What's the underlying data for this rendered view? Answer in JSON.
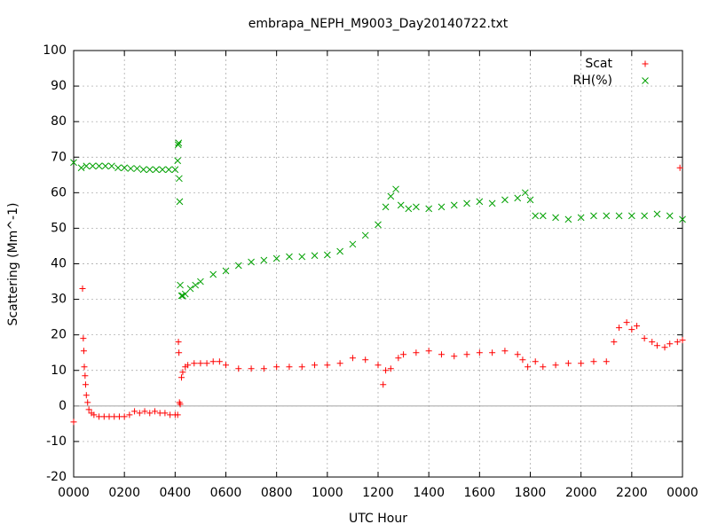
{
  "chart_data": {
    "type": "scatter",
    "title": "embrapa_NEPH_M9003_Day20140722.txt",
    "x_label": "UTC Hour",
    "y_label": "Scattering (Mm^-1)",
    "xlim": [
      0,
      24
    ],
    "ylim": [
      -20,
      100
    ],
    "xticks": [
      {
        "value": 0,
        "label": "0000"
      },
      {
        "value": 2,
        "label": "0200"
      },
      {
        "value": 4,
        "label": "0400"
      },
      {
        "value": 6,
        "label": "0600"
      },
      {
        "value": 8,
        "label": "0800"
      },
      {
        "value": 10,
        "label": "1000"
      },
      {
        "value": 12,
        "label": "1200"
      },
      {
        "value": 14,
        "label": "1400"
      },
      {
        "value": 16,
        "label": "1600"
      },
      {
        "value": 18,
        "label": "1800"
      },
      {
        "value": 20,
        "label": "2000"
      },
      {
        "value": 22,
        "label": "2200"
      },
      {
        "value": 24,
        "label": "0000"
      }
    ],
    "yticks": [
      -20,
      -10,
      0,
      10,
      20,
      30,
      40,
      50,
      60,
      70,
      80,
      90,
      100
    ],
    "grid": true,
    "zero_axis": true,
    "legend": "top-right",
    "series": [
      {
        "name": "Scat",
        "color": "#ff0000",
        "marker": "plus",
        "x": [
          0,
          0.35,
          0.38,
          0.4,
          0.42,
          0.45,
          0.47,
          0.5,
          0.55,
          0.6,
          0.7,
          0.8,
          1.0,
          1.2,
          1.4,
          1.6,
          1.8,
          2.0,
          2.2,
          2.4,
          2.6,
          2.8,
          3.0,
          3.2,
          3.4,
          3.6,
          3.8,
          4.0,
          4.1,
          4.13,
          4.15,
          4.17,
          4.2,
          4.25,
          4.3,
          4.4,
          4.5,
          4.75,
          5.0,
          5.25,
          5.5,
          5.75,
          6.0,
          6.5,
          7.0,
          7.5,
          8.0,
          8.5,
          9.0,
          9.5,
          10.0,
          10.5,
          11.0,
          11.5,
          12.0,
          12.2,
          12.3,
          12.5,
          12.8,
          13.0,
          13.5,
          14.0,
          14.5,
          15.0,
          15.5,
          16.0,
          16.5,
          17.0,
          17.5,
          17.7,
          17.9,
          18.2,
          18.5,
          19.0,
          19.5,
          20.0,
          20.5,
          21.0,
          21.3,
          21.5,
          21.8,
          22.0,
          22.2,
          22.5,
          22.8,
          23.0,
          23.3,
          23.5,
          23.8,
          23.9,
          24.0
        ],
        "values": [
          -4.5,
          33,
          19,
          15.5,
          11,
          8.5,
          6,
          3,
          1,
          -1,
          -2,
          -2.5,
          -3,
          -3,
          -3,
          -3,
          -3,
          -3,
          -2.5,
          -1.5,
          -2,
          -1.5,
          -2,
          -1.5,
          -2,
          -2,
          -2.5,
          -2.5,
          -2.5,
          18,
          15,
          1,
          0.5,
          8,
          9.5,
          11,
          11.5,
          12,
          12,
          12,
          12.5,
          12.5,
          11.5,
          10.5,
          10.5,
          10.5,
          11,
          11,
          11,
          11.5,
          11.5,
          12,
          13.5,
          13,
          11.5,
          6,
          10,
          10.5,
          13.5,
          14.5,
          15,
          15.5,
          14.5,
          14,
          14.5,
          15,
          15,
          15.5,
          14.5,
          13,
          11,
          12.5,
          11,
          11.5,
          12,
          12,
          12.5,
          12.5,
          18,
          22,
          23.5,
          21.5,
          22.5,
          19,
          18,
          17,
          16.5,
          17.5,
          18,
          67,
          18.5
        ]
      },
      {
        "name": "RH(%)",
        "color": "#00a000",
        "marker": "cross",
        "x": [
          0,
          0.3,
          0.5,
          0.75,
          1.0,
          1.25,
          1.5,
          1.75,
          2.0,
          2.25,
          2.5,
          2.75,
          3.0,
          3.25,
          3.5,
          3.75,
          4.0,
          4.1,
          4.12,
          4.14,
          4.16,
          4.18,
          4.2,
          4.25,
          4.3,
          4.4,
          4.6,
          4.8,
          5.0,
          5.5,
          6.0,
          6.5,
          7.0,
          7.5,
          8.0,
          8.5,
          9.0,
          9.5,
          10.0,
          10.5,
          11.0,
          11.5,
          12.0,
          12.3,
          12.5,
          12.7,
          12.9,
          13.2,
          13.5,
          14.0,
          14.5,
          15.0,
          15.5,
          16.0,
          16.5,
          17.0,
          17.5,
          17.8,
          18.0,
          18.2,
          18.5,
          19.0,
          19.5,
          20.0,
          20.5,
          21.0,
          21.5,
          22.0,
          22.5,
          23.0,
          23.5,
          24.0
        ],
        "values": [
          68.5,
          67,
          67.5,
          67.5,
          67.5,
          67.5,
          67.5,
          67,
          67,
          66.8,
          66.8,
          66.5,
          66.5,
          66.5,
          66.5,
          66.5,
          66.5,
          69,
          73.5,
          74,
          64,
          57.5,
          34,
          31,
          31,
          31.5,
          33,
          34,
          35,
          37,
          38,
          39.5,
          40.5,
          41,
          41.5,
          42,
          42,
          42.3,
          42.5,
          43.5,
          45.5,
          48,
          51,
          56,
          59,
          61,
          56.5,
          55.5,
          56,
          55.5,
          56,
          56.5,
          57,
          57.5,
          57,
          58,
          58.5,
          60,
          58,
          53.5,
          53.5,
          53,
          52.5,
          53,
          53.5,
          53.5,
          53.5,
          53.5,
          53.5,
          54,
          53.5,
          52.5
        ]
      }
    ]
  }
}
